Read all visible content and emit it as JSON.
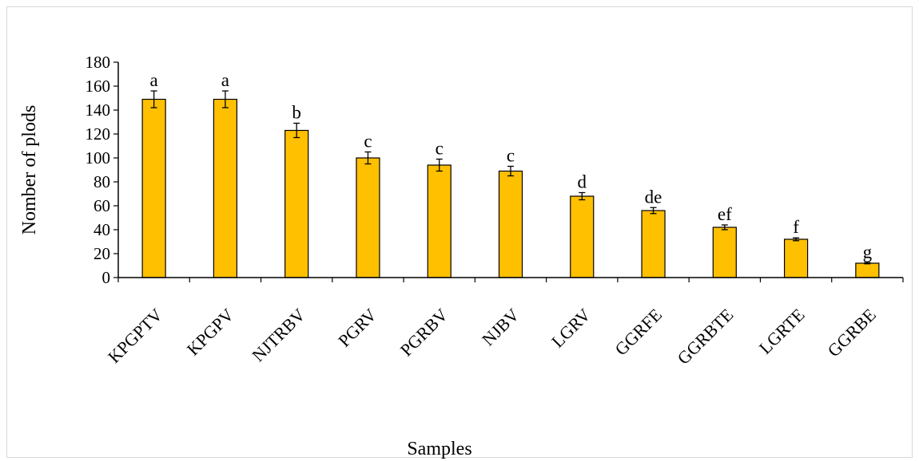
{
  "chart_data": {
    "type": "bar",
    "title": "",
    "xlabel": "Samples",
    "ylabel": "Nomber of plods",
    "ylim": [
      0,
      180
    ],
    "yticks": [
      0,
      20,
      40,
      60,
      80,
      100,
      120,
      140,
      160,
      180
    ],
    "categories": [
      "KPGPTV",
      "KPGPV",
      "NJTRBV",
      "PGRV",
      "PGRBV",
      "NJBV",
      "LGRV",
      "GGRFE",
      "GGRBTE",
      "LGRTE",
      "GGRBE"
    ],
    "values": [
      149,
      149,
      123,
      100,
      94,
      89,
      68,
      56,
      42,
      32,
      12
    ],
    "errors": [
      7,
      7,
      6,
      5,
      5,
      4,
      3,
      2.5,
      2,
      1.2,
      0.5
    ],
    "letters": [
      "a",
      "a",
      "b",
      "c",
      "c",
      "c",
      "d",
      "de",
      "ef",
      "f",
      "g"
    ],
    "bar_color": "#FFC000",
    "grid": false,
    "legend": "none"
  }
}
